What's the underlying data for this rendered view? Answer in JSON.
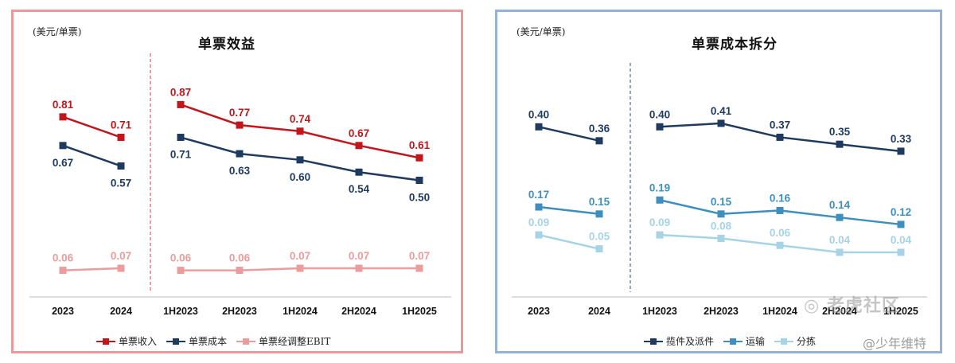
{
  "watermark": {
    "main": "◎ 老虎社区",
    "sub": "@少年维特"
  },
  "colors": {
    "left_border": "#e8999b",
    "right_border": "#93b2d6",
    "red": "#c0161c",
    "navy": "#1f3a5f",
    "pink": "#eb9c9c",
    "blue": "#3e8fbd",
    "lightblue": "#a6d3e6"
  },
  "chart_data": [
    {
      "type": "line",
      "title": "单票效益",
      "unit": "(美元/单票)",
      "categories": [
        "2023",
        "2024",
        "1H2023",
        "2H2023",
        "1H2024",
        "2H2024",
        "1H2025"
      ],
      "separator_after_index": 1,
      "separator_style": "dashed-red",
      "legend_position": "bottom",
      "series": [
        {
          "name": "单票收入",
          "color": "#c0161c",
          "label_color": "#c0161c",
          "label_pos": "above",
          "values": [
            0.81,
            0.71,
            0.87,
            0.77,
            0.74,
            0.67,
            0.61
          ],
          "labels": [
            "0.81",
            "0.71",
            "0.87",
            "0.77",
            "0.74",
            "0.67",
            "0.61"
          ]
        },
        {
          "name": "单票成本",
          "color": "#1f3a5f",
          "label_color": "#1f3a5f",
          "label_pos": "below",
          "values": [
            0.67,
            0.57,
            0.71,
            0.63,
            0.6,
            0.54,
            0.5
          ],
          "labels": [
            "0.67",
            "0.57",
            "0.71",
            "0.63",
            "0.60",
            "0.54",
            "0.50"
          ]
        },
        {
          "name": "单票经调整EBIT",
          "color": "#eb9c9c",
          "label_color": "#eb9c9c",
          "label_pos": "above",
          "values": [
            0.06,
            0.07,
            0.06,
            0.06,
            0.07,
            0.07,
            0.07
          ],
          "labels": [
            "0.06",
            "0.07",
            "0.06",
            "0.06",
            "0.07",
            "0.07",
            "0.07"
          ]
        }
      ]
    },
    {
      "type": "line",
      "title": "单票成本拆分",
      "unit": "(美元/单票)",
      "categories": [
        "2023",
        "2024",
        "1H2023",
        "2H2023",
        "1H2024",
        "2H2024",
        "1H2025"
      ],
      "separator_after_index": 1,
      "separator_style": "dashed-navy",
      "legend_position": "bottom",
      "series": [
        {
          "name": "揽件及派件",
          "color": "#1f3a5f",
          "label_color": "#1f3a5f",
          "label_pos": "above",
          "values": [
            0.4,
            0.36,
            0.4,
            0.41,
            0.37,
            0.35,
            0.33
          ],
          "labels": [
            "0.40",
            "0.36",
            "0.40",
            "0.41",
            "0.37",
            "0.35",
            "0.33"
          ]
        },
        {
          "name": "运输",
          "color": "#3e8fbd",
          "label_color": "#3e8fbd",
          "label_pos": "above",
          "values": [
            0.17,
            0.15,
            0.19,
            0.15,
            0.16,
            0.14,
            0.12
          ],
          "labels": [
            "0.17",
            "0.15",
            "0.19",
            "0.15",
            "0.16",
            "0.14",
            "0.12"
          ]
        },
        {
          "name": "分拣",
          "color": "#a6d3e6",
          "label_color": "#a6d3e6",
          "label_pos": "above",
          "values": [
            0.09,
            0.05,
            0.09,
            0.08,
            0.06,
            0.04,
            0.04
          ],
          "labels": [
            "0.09",
            "0.05",
            "0.09",
            "0.08",
            "0.06",
            "0.04",
            "0.04"
          ]
        }
      ]
    }
  ]
}
